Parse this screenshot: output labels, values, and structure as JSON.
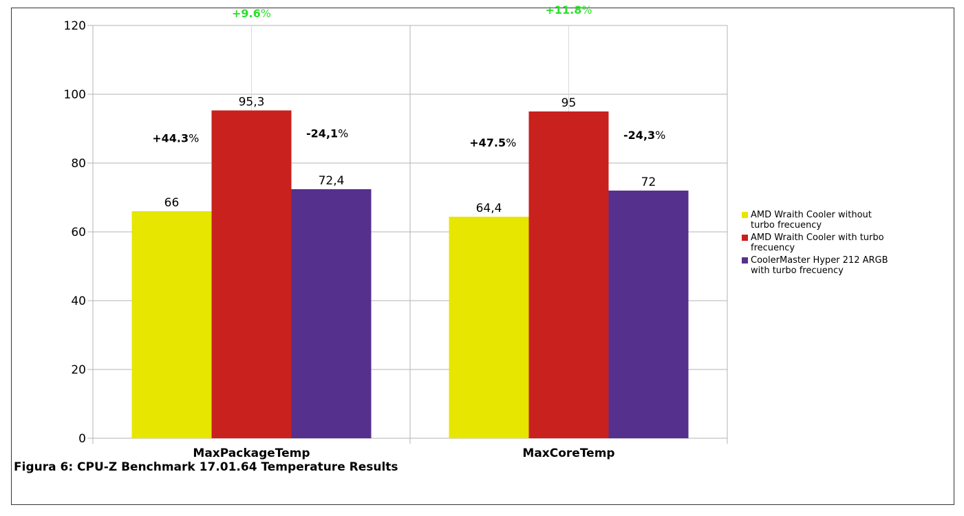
{
  "chart_data": {
    "type": "bar",
    "categories": [
      "MaxPackageTemp",
      "MaxCoreTemp"
    ],
    "series": [
      {
        "name": "AMD Wraith Cooler without turbo frecuency",
        "color": "#e6e600",
        "values": [
          66,
          64.4
        ],
        "labels": [
          "66",
          "64,4"
        ]
      },
      {
        "name": "AMD Wraith Cooler with turbo frecuency",
        "color": "#c9211e",
        "values": [
          95.3,
          95
        ],
        "labels": [
          "95,3",
          "95"
        ]
      },
      {
        "name": "CoolerMaster Hyper 212 ARGB with turbo frecuency",
        "color": "#55308d",
        "values": [
          72.4,
          72
        ],
        "labels": [
          "72,4",
          "72"
        ]
      }
    ],
    "ylim": [
      0,
      120
    ],
    "yticks": [
      "0",
      "20",
      "40",
      "60",
      "80",
      "100",
      "120"
    ],
    "grid": true,
    "legend_position": "right",
    "annotations": [
      {
        "category": "MaxPackageTemp",
        "position": "top",
        "bold": "+9.6",
        "suffix": "%",
        "color": "#2ae02a"
      },
      {
        "category": "MaxPackageTemp",
        "position": "left",
        "bold": "+44.3",
        "suffix": "%",
        "color": "#000000"
      },
      {
        "category": "MaxPackageTemp",
        "position": "right",
        "bold": "-24,1",
        "suffix": "%",
        "color": "#000000"
      },
      {
        "category": "MaxCoreTemp",
        "position": "top",
        "bold": "+11.8",
        "suffix": "%",
        "color": "#2ae02a"
      },
      {
        "category": "MaxCoreTemp",
        "position": "left",
        "bold": "+47.5",
        "suffix": "%",
        "color": "#000000"
      },
      {
        "category": "MaxCoreTemp",
        "position": "right",
        "bold": "-24,3",
        "suffix": "%",
        "color": "#000000"
      }
    ]
  },
  "caption": "Figura 6: CPU-Z Benchmark 17.01.64 Temperature Results"
}
